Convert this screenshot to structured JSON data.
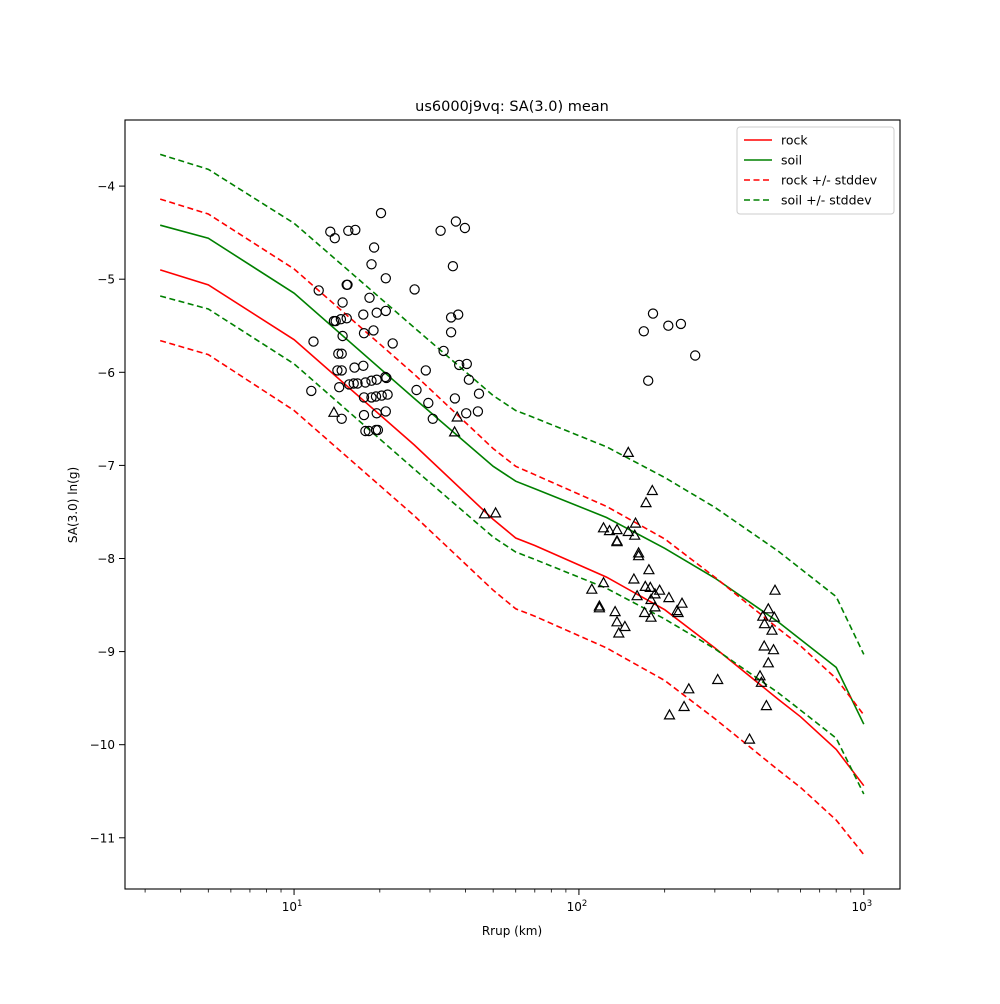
{
  "chart_data": {
    "type": "line",
    "title": "us6000j9vq: SA(3.0) mean",
    "xlabel": "Rrup (km)",
    "ylabel": "SA(3.0) ln(g)",
    "xscale": "log",
    "xlim": [
      2.55,
      1340
    ],
    "ylim": [
      -11.55,
      -3.29
    ],
    "xticks": [
      {
        "value": 10,
        "base": "10",
        "exp": "1"
      },
      {
        "value": 100,
        "base": "10",
        "exp": "2"
      },
      {
        "value": 1000,
        "base": "10",
        "exp": "3"
      }
    ],
    "yticks": [
      -4,
      -5,
      -6,
      -7,
      -8,
      -9,
      -10,
      -11
    ],
    "ytick_labels": [
      "−4",
      "−5",
      "−6",
      "−7",
      "−8",
      "−9",
      "−10",
      "−11"
    ],
    "grid": false,
    "legend_position": "top-right",
    "series": [
      {
        "name": "rock",
        "color": "#ff0000",
        "style": "solid",
        "x": [
          3.39,
          5,
          10,
          26.4,
          50,
          60,
          70,
          125,
          200,
          300,
          500,
          600,
          800,
          1000
        ],
        "y": [
          -4.9,
          -5.06,
          -5.65,
          -6.78,
          -7.58,
          -7.78,
          -7.86,
          -8.2,
          -8.55,
          -8.96,
          -9.51,
          -9.7,
          -10.05,
          -10.44
        ]
      },
      {
        "name": "soil",
        "color": "#008000",
        "style": "solid",
        "x": [
          3.39,
          5,
          10,
          26.4,
          50,
          60,
          70,
          125,
          200,
          300,
          500,
          600,
          800,
          1000
        ],
        "y": [
          -4.42,
          -4.56,
          -5.15,
          -6.28,
          -7.01,
          -7.17,
          -7.25,
          -7.56,
          -7.89,
          -8.21,
          -8.68,
          -8.87,
          -9.17,
          -9.78
        ]
      },
      {
        "name": "rock +/- stddev",
        "color": "#ff0000",
        "style": "dashed",
        "x": [
          3.39,
          5,
          10,
          26.4,
          50,
          60,
          70,
          125,
          200,
          300,
          500,
          600,
          800,
          1000
        ],
        "y": [
          -4.14,
          -4.3,
          -4.89,
          -6.02,
          -6.82,
          -7.01,
          -7.1,
          -7.44,
          -7.79,
          -8.2,
          -8.75,
          -8.94,
          -9.29,
          -9.68
        ]
      },
      {
        "name": "rock +/- stddev lower",
        "color": "#ff0000",
        "style": "dashed",
        "x": [
          3.39,
          5,
          10,
          26.4,
          50,
          60,
          70,
          125,
          200,
          300,
          500,
          600,
          800,
          1000
        ],
        "y": [
          -5.66,
          -5.81,
          -6.41,
          -7.54,
          -8.34,
          -8.54,
          -8.62,
          -8.96,
          -9.31,
          -9.72,
          -10.27,
          -10.46,
          -10.81,
          -11.18
        ]
      },
      {
        "name": "soil +/- stddev",
        "color": "#008000",
        "style": "dashed",
        "x": [
          3.39,
          5,
          10,
          26.4,
          50,
          60,
          70,
          125,
          200,
          300,
          500,
          600,
          800,
          1000
        ],
        "y": [
          -3.66,
          -3.82,
          -4.4,
          -5.52,
          -6.25,
          -6.41,
          -6.49,
          -6.8,
          -7.13,
          -7.45,
          -7.92,
          -8.11,
          -8.41,
          -9.03
        ]
      },
      {
        "name": "soil +/- stddev lower",
        "color": "#008000",
        "style": "dashed",
        "x": [
          3.39,
          5,
          10,
          26.4,
          50,
          60,
          70,
          125,
          200,
          300,
          500,
          600,
          800,
          1000
        ],
        "y": [
          -5.18,
          -5.32,
          -5.91,
          -7.04,
          -7.77,
          -7.93,
          -8.01,
          -8.32,
          -8.65,
          -8.97,
          -9.44,
          -9.63,
          -9.93,
          -10.53
        ]
      }
    ],
    "legend": [
      {
        "label": "rock",
        "color": "#ff0000",
        "style": "solid"
      },
      {
        "label": "soil",
        "color": "#008000",
        "style": "solid"
      },
      {
        "label": "rock +/- stddev",
        "color": "#ff0000",
        "style": "dashed"
      },
      {
        "label": "soil +/- stddev",
        "color": "#008000",
        "style": "dashed"
      }
    ],
    "observations_circle": [
      [
        13.4,
        -4.49
      ],
      [
        13.9,
        -4.56
      ],
      [
        15.5,
        -4.48
      ],
      [
        16.4,
        -4.47
      ],
      [
        20.2,
        -4.29
      ],
      [
        19.1,
        -4.66
      ],
      [
        18.7,
        -4.84
      ],
      [
        21.0,
        -4.99
      ],
      [
        15.4,
        -5.06
      ],
      [
        15.3,
        -5.06
      ],
      [
        12.2,
        -5.12
      ],
      [
        14.8,
        -5.25
      ],
      [
        18.4,
        -5.2
      ],
      [
        21.0,
        -5.34
      ],
      [
        19.5,
        -5.36
      ],
      [
        17.5,
        -5.38
      ],
      [
        15.3,
        -5.42
      ],
      [
        14.6,
        -5.43
      ],
      [
        13.8,
        -5.45
      ],
      [
        14.0,
        -5.45
      ],
      [
        19.0,
        -5.55
      ],
      [
        17.6,
        -5.58
      ],
      [
        14.8,
        -5.61
      ],
      [
        22.2,
        -5.69
      ],
      [
        11.7,
        -5.67
      ],
      [
        14.3,
        -5.8
      ],
      [
        14.7,
        -5.8
      ],
      [
        17.5,
        -5.93
      ],
      [
        16.3,
        -5.95
      ],
      [
        14.2,
        -5.98
      ],
      [
        14.7,
        -5.98
      ],
      [
        11.5,
        -6.2
      ],
      [
        14.4,
        -6.16
      ],
      [
        15.6,
        -6.13
      ],
      [
        16.2,
        -6.12
      ],
      [
        16.7,
        -6.12
      ],
      [
        17.8,
        -6.11
      ],
      [
        18.7,
        -6.09
      ],
      [
        19.5,
        -6.08
      ],
      [
        20.9,
        -6.05
      ],
      [
        21.1,
        -6.06
      ],
      [
        17.6,
        -6.27
      ],
      [
        18.7,
        -6.27
      ],
      [
        19.4,
        -6.26
      ],
      [
        20.3,
        -6.25
      ],
      [
        21.3,
        -6.24
      ],
      [
        17.6,
        -6.46
      ],
      [
        19.5,
        -6.44
      ],
      [
        21.0,
        -6.42
      ],
      [
        14.7,
        -6.5
      ],
      [
        17.8,
        -6.63
      ],
      [
        18.3,
        -6.63
      ],
      [
        19.4,
        -6.62
      ],
      [
        19.7,
        -6.62
      ],
      [
        32.7,
        -4.48
      ],
      [
        37.0,
        -4.38
      ],
      [
        39.8,
        -4.45
      ],
      [
        36.1,
        -4.86
      ],
      [
        26.5,
        -5.11
      ],
      [
        35.6,
        -5.41
      ],
      [
        37.7,
        -5.38
      ],
      [
        35.6,
        -5.57
      ],
      [
        33.5,
        -5.77
      ],
      [
        29.0,
        -5.98
      ],
      [
        38.0,
        -5.92
      ],
      [
        40.4,
        -5.91
      ],
      [
        41.1,
        -6.08
      ],
      [
        26.9,
        -6.19
      ],
      [
        44.6,
        -6.23
      ],
      [
        36.7,
        -6.28
      ],
      [
        29.6,
        -6.33
      ],
      [
        40.2,
        -6.44
      ],
      [
        44.2,
        -6.42
      ],
      [
        30.7,
        -6.5
      ],
      [
        182,
        -5.37
      ],
      [
        169,
        -5.56
      ],
      [
        206,
        -5.5
      ],
      [
        228,
        -5.48
      ],
      [
        256,
        -5.82
      ],
      [
        175,
        -6.09
      ]
    ],
    "observations_triangle": [
      [
        13.8,
        -6.43
      ],
      [
        36.6,
        -6.64
      ],
      [
        37.4,
        -6.48
      ],
      [
        46.6,
        -7.52
      ],
      [
        51.0,
        -7.51
      ],
      [
        149,
        -6.86
      ],
      [
        181,
        -7.27
      ],
      [
        172,
        -7.4
      ],
      [
        111,
        -8.33
      ],
      [
        118,
        -8.51
      ],
      [
        118,
        -8.53
      ],
      [
        122,
        -8.26
      ],
      [
        122,
        -7.67
      ],
      [
        128,
        -7.7
      ],
      [
        136,
        -7.69
      ],
      [
        136,
        -7.81
      ],
      [
        136,
        -7.82
      ],
      [
        149,
        -7.71
      ],
      [
        158,
        -7.62
      ],
      [
        157,
        -7.75
      ],
      [
        162,
        -7.94
      ],
      [
        162,
        -7.97
      ],
      [
        156,
        -8.22
      ],
      [
        176,
        -8.12
      ],
      [
        171,
        -8.3
      ],
      [
        178,
        -8.31
      ],
      [
        185,
        -8.38
      ],
      [
        192,
        -8.34
      ],
      [
        207,
        -8.42
      ],
      [
        179,
        -8.44
      ],
      [
        185,
        -8.52
      ],
      [
        170,
        -8.58
      ],
      [
        179,
        -8.63
      ],
      [
        160,
        -8.4
      ],
      [
        230,
        -8.48
      ],
      [
        221,
        -8.56
      ],
      [
        223,
        -8.58
      ],
      [
        134,
        -8.57
      ],
      [
        136,
        -8.68
      ],
      [
        145,
        -8.73
      ],
      [
        138,
        -8.8
      ],
      [
        208,
        -9.68
      ],
      [
        234,
        -9.59
      ],
      [
        243,
        -9.4
      ],
      [
        307,
        -9.3
      ],
      [
        397,
        -9.94
      ],
      [
        455,
        -9.58
      ],
      [
        462,
        -9.12
      ],
      [
        432,
        -9.26
      ],
      [
        437,
        -9.33
      ],
      [
        447,
        -8.94
      ],
      [
        488,
        -8.34
      ],
      [
        442,
        -8.62
      ],
      [
        462,
        -8.54
      ],
      [
        448,
        -8.7
      ],
      [
        476,
        -8.77
      ],
      [
        485,
        -8.63
      ],
      [
        482,
        -8.98
      ]
    ]
  }
}
